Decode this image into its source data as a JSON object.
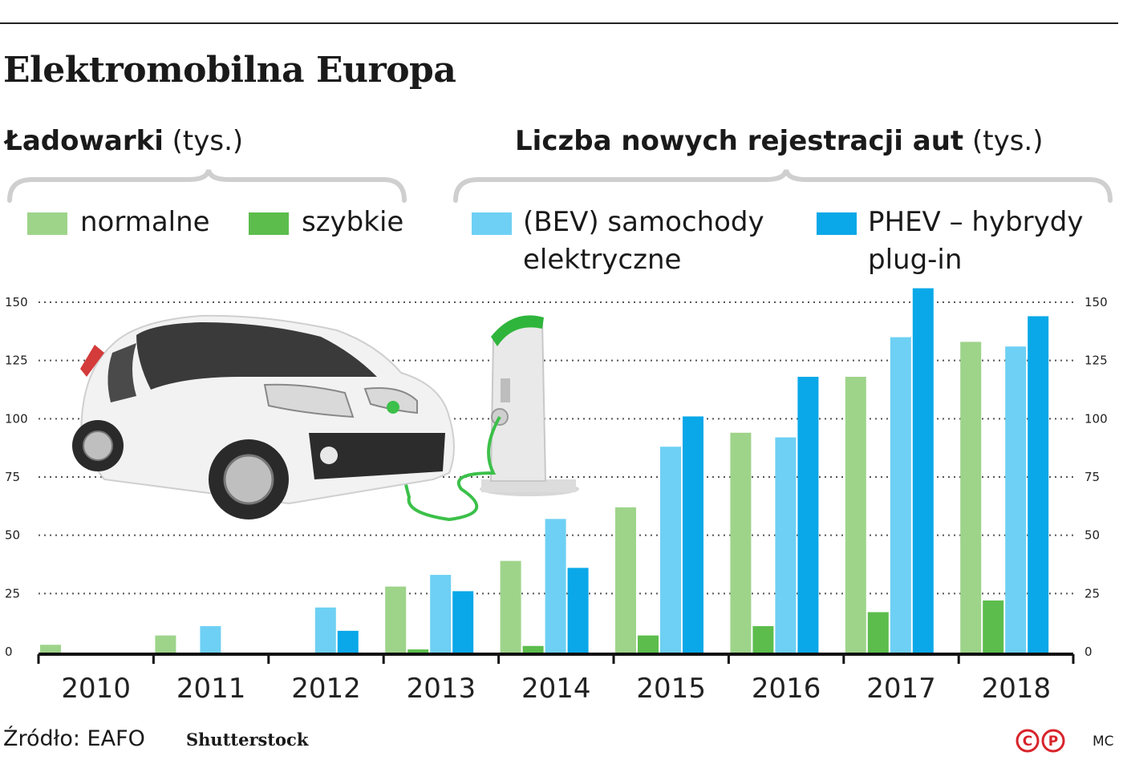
{
  "title": "Elektromobilna Europa",
  "subtitles": {
    "left_bold": "Ładowarki",
    "left_unit": "(tys.)",
    "right_bold": "Liczba nowych rejestracji aut",
    "right_unit": "(tys.)"
  },
  "legend": [
    {
      "label": "normalne",
      "color": "#9ed48a"
    },
    {
      "label": "szybkie",
      "color": "#5cbd4c"
    },
    {
      "label_line1": "(BEV) samochody",
      "label_line2": "elektryczne",
      "color": "#6ed0f4"
    },
    {
      "label_line1": "PHEV – hybrydy",
      "label_line2": "plug-in",
      "color": "#0aa8e8"
    }
  ],
  "chart_data": {
    "type": "bar",
    "categories": [
      "2010",
      "2011",
      "2012",
      "2013",
      "2014",
      "2015",
      "2016",
      "2017",
      "2018"
    ],
    "series": [
      {
        "name": "normalne",
        "color": "#9ed48a",
        "values": [
          3,
          7,
          0,
          28,
          39,
          62,
          94,
          118,
          133
        ]
      },
      {
        "name": "szybkie",
        "color": "#5cbd4c",
        "values": [
          0,
          0,
          0,
          1,
          2.5,
          7,
          11,
          17,
          22
        ]
      },
      {
        "name": "(BEV) samochody elektryczne",
        "color": "#6ed0f4",
        "values": [
          0,
          11,
          19,
          33,
          57,
          88,
          92,
          135,
          131
        ]
      },
      {
        "name": "PHEV – hybrydy plug-in",
        "color": "#0aa8e8",
        "values": [
          0,
          0,
          9,
          26,
          36,
          101,
          118,
          156,
          144
        ]
      }
    ],
    "ylim": [
      0,
      150
    ],
    "yticks": [
      0,
      25,
      50,
      75,
      100,
      125,
      150
    ],
    "y_axis_both_sides": true,
    "grid": "dotted horizontal",
    "legend_position": "top"
  },
  "footer": {
    "source": "Źródło: EAFO",
    "image_credit": "Shutterstock",
    "author": "MC",
    "logo_text": "CP"
  }
}
